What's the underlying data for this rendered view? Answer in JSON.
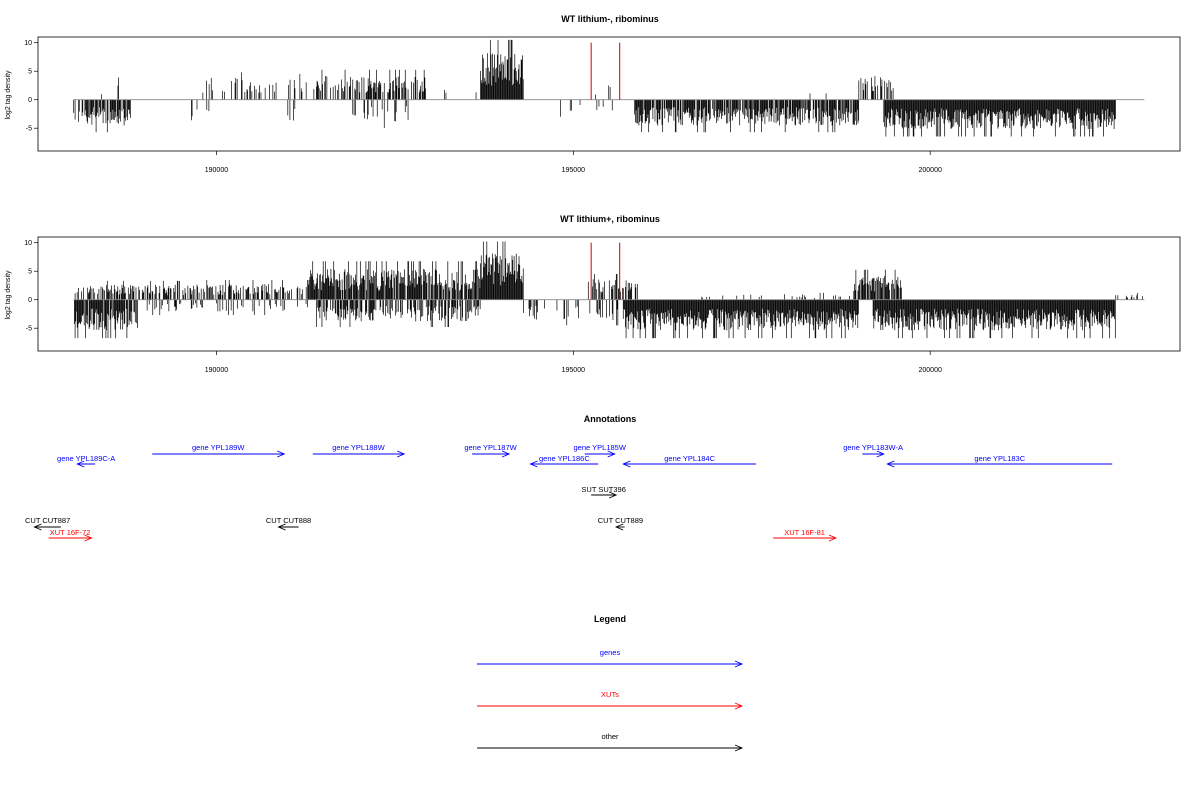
{
  "chart_data": [
    {
      "type": "bar",
      "title": "WT lithium-, ribominus",
      "ylabel": "log2 tag density",
      "xlim": [
        187500,
        203500
      ],
      "ylim": [
        -9,
        11
      ],
      "x_ticks": [
        190000,
        195000,
        200000
      ],
      "y_ticks": [
        10,
        5,
        0,
        -5
      ],
      "baseline": 0,
      "series": [
        {
          "segments": [
            {
              "x0": 188000,
              "x1": 188800,
              "strand": "-",
              "amp": 3.8,
              "density": 0.7
            },
            {
              "x0": 188300,
              "x1": 188400,
              "strand": "+",
              "amp": 2.5,
              "density": 0.3
            },
            {
              "x0": 188600,
              "x1": 188700,
              "strand": "+",
              "amp": 3.5,
              "density": 0.3
            },
            {
              "x0": 189600,
              "x1": 189900,
              "strand": "-",
              "amp": 3.2,
              "density": 0.15
            },
            {
              "x0": 189800,
              "x1": 190800,
              "strand": "+",
              "amp": 3.2,
              "density": 0.25
            },
            {
              "x0": 190600,
              "x1": 191500,
              "strand": "+",
              "amp": 3.0,
              "density": 0.1
            },
            {
              "x0": 191000,
              "x1": 191100,
              "strand": "-",
              "amp": 3.3,
              "density": 0.5
            },
            {
              "x0": 191400,
              "x1": 193000,
              "strand": "+",
              "amp": 3.5,
              "density": 0.55
            },
            {
              "x0": 191900,
              "x1": 192700,
              "strand": "-",
              "amp": 3.3,
              "density": 0.25
            },
            {
              "x0": 193000,
              "x1": 193800,
              "strand": "+",
              "amp": 1.5,
              "density": 0.06
            },
            {
              "x0": 193700,
              "x1": 194300,
              "strand": "+",
              "amp": 7.0,
              "density": 1.0
            },
            {
              "x0": 194300,
              "x1": 195800,
              "strand": "-",
              "amp": 2.0,
              "density": 0.08
            },
            {
              "x0": 195300,
              "x1": 195600,
              "strand": "+",
              "amp": 2.5,
              "density": 0.1
            },
            {
              "x0": 195850,
              "x1": 199000,
              "strand": "-",
              "amp": 3.8,
              "density": 0.85
            },
            {
              "x0": 197600,
              "x1": 199000,
              "strand": "+",
              "amp": 1.0,
              "density": 0.03
            },
            {
              "x0": 199000,
              "x1": 199500,
              "strand": "+",
              "amp": 3.5,
              "density": 0.5
            },
            {
              "x0": 199350,
              "x1": 202600,
              "strand": "-",
              "amp": 4.3,
              "density": 1.0
            }
          ]
        }
      ],
      "highlights": [
        {
          "x": 195250,
          "y": 10,
          "color": "#cc0000"
        },
        {
          "x": 195650,
          "y": 10,
          "color": "#cc0000"
        }
      ]
    },
    {
      "type": "bar",
      "title": "WT lithium+, ribominus",
      "ylabel": "log2 tag density",
      "xlim": [
        187500,
        203500
      ],
      "ylim": [
        -9,
        11
      ],
      "x_ticks": [
        190000,
        195000,
        200000
      ],
      "y_ticks": [
        10,
        5,
        0,
        -5
      ],
      "baseline": 0,
      "series": [
        {
          "segments": [
            {
              "x0": 188000,
              "x1": 189600,
              "strand": "+",
              "amp": 2.2,
              "density": 0.5
            },
            {
              "x0": 188000,
              "x1": 188900,
              "strand": "-",
              "amp": 4.5,
              "density": 0.85
            },
            {
              "x0": 189000,
              "x1": 191400,
              "strand": "-",
              "amp": 1.8,
              "density": 0.2
            },
            {
              "x0": 189600,
              "x1": 191300,
              "strand": "+",
              "amp": 2.3,
              "density": 0.5
            },
            {
              "x0": 191300,
              "x1": 193700,
              "strand": "+",
              "amp": 4.5,
              "density": 0.9
            },
            {
              "x0": 191400,
              "x1": 193700,
              "strand": "-",
              "amp": 3.2,
              "density": 0.6
            },
            {
              "x0": 193700,
              "x1": 194300,
              "strand": "+",
              "amp": 6.8,
              "density": 1.0
            },
            {
              "x0": 194300,
              "x1": 195700,
              "strand": "-",
              "amp": 3.0,
              "density": 0.25
            },
            {
              "x0": 195200,
              "x1": 195900,
              "strand": "+",
              "amp": 3.0,
              "density": 0.35
            },
            {
              "x0": 195700,
              "x1": 199000,
              "strand": "-",
              "amp": 4.5,
              "density": 1.0
            },
            {
              "x0": 196800,
              "x1": 198900,
              "strand": "+",
              "amp": 0.8,
              "density": 0.08
            },
            {
              "x0": 198900,
              "x1": 199600,
              "strand": "+",
              "amp": 3.5,
              "density": 0.85
            },
            {
              "x0": 199200,
              "x1": 202600,
              "strand": "-",
              "amp": 4.5,
              "density": 1.0
            },
            {
              "x0": 202600,
              "x1": 203000,
              "strand": "+",
              "amp": 0.8,
              "density": 0.1
            }
          ]
        }
      ],
      "highlights": [
        {
          "x": 195250,
          "y": 10,
          "color": "#cc0000"
        },
        {
          "x": 195650,
          "y": 10,
          "color": "#cc0000"
        }
      ]
    }
  ],
  "annotations": {
    "title": "Annotations",
    "colors": {
      "gene": "#0000ff",
      "xut": "#ff0000",
      "other": "#000000"
    },
    "features": [
      {
        "label": "gene YPL189C-A",
        "kind": "gene",
        "x0": 188050,
        "x1": 188300,
        "strand": "-",
        "row": 1
      },
      {
        "label": "gene YPL189W",
        "kind": "gene",
        "x0": 189100,
        "x1": 190950,
        "strand": "+",
        "row": 0
      },
      {
        "label": "gene YPL188W",
        "kind": "gene",
        "x0": 191350,
        "x1": 192630,
        "strand": "+",
        "row": 0
      },
      {
        "label": "gene YPL187W",
        "kind": "gene",
        "x0": 193580,
        "x1": 194100,
        "strand": "+",
        "row": 0
      },
      {
        "label": "gene YPL186C",
        "kind": "gene",
        "x0": 194400,
        "x1": 195350,
        "strand": "-",
        "row": 1
      },
      {
        "label": "gene YPL185W",
        "kind": "gene",
        "x0": 195160,
        "x1": 195580,
        "strand": "+",
        "row": 0
      },
      {
        "label": "gene YPL184C",
        "kind": "gene",
        "x0": 195700,
        "x1": 197560,
        "strand": "-",
        "row": 1
      },
      {
        "label": "gene YPL183W-A",
        "kind": "gene",
        "x0": 199050,
        "x1": 199350,
        "strand": "+",
        "row": 0
      },
      {
        "label": "gene YPL183C",
        "kind": "gene",
        "x0": 199400,
        "x1": 202550,
        "strand": "-",
        "row": 1
      },
      {
        "label": "SUT SUT396",
        "kind": "other",
        "x0": 195250,
        "x1": 195600,
        "strand": "+",
        "row": 2
      },
      {
        "label": "CUT CUT887",
        "kind": "other",
        "x0": 187450,
        "x1": 187820,
        "strand": "-",
        "row": 3
      },
      {
        "label": "XUT 16F-72",
        "kind": "xut",
        "x0": 187650,
        "x1": 188250,
        "strand": "+",
        "row": 4
      },
      {
        "label": "CUT CUT888",
        "kind": "other",
        "x0": 190870,
        "x1": 191150,
        "strand": "-",
        "row": 3
      },
      {
        "label": "CUT CUT889",
        "kind": "other",
        "x0": 195600,
        "x1": 195720,
        "strand": "-",
        "row": 3
      },
      {
        "label": "XUT 16F-81",
        "kind": "xut",
        "x0": 197800,
        "x1": 198680,
        "strand": "+",
        "row": 4
      }
    ]
  },
  "legend": {
    "title": "Legend",
    "items": [
      {
        "label": "genes",
        "color": "#0000ff"
      },
      {
        "label": "XUTs",
        "color": "#ff0000"
      },
      {
        "label": "other",
        "color": "#000000"
      }
    ]
  }
}
